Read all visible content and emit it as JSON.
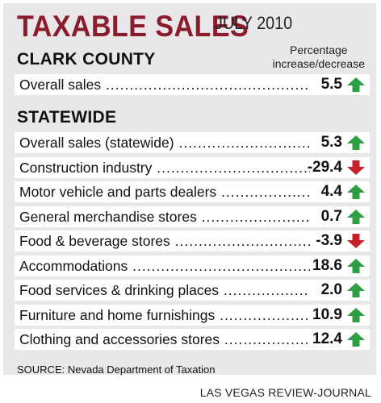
{
  "header": {
    "title": "TAXABLE SALES",
    "subtitle": "JULY 2010",
    "column_label_line1": "Percentage",
    "column_label_line2": "increase/decrease"
  },
  "sections": {
    "clark": "CLARK COUNTY",
    "statewide": "STATEWIDE"
  },
  "colors": {
    "increase": "#2e9e44",
    "decrease": "#c8202a",
    "title": "#8a1c2b",
    "panel": "#e9e7ea"
  },
  "chart_data": {
    "type": "table",
    "title": "TAXABLE SALES",
    "subtitle": "JULY 2010",
    "value_label": "Percentage increase/decrease",
    "groups": [
      {
        "name": "CLARK COUNTY",
        "rows": [
          {
            "label": "Overall sales",
            "value": 5.5,
            "display": "5.5",
            "direction": "up"
          }
        ]
      },
      {
        "name": "STATEWIDE",
        "rows": [
          {
            "label": "Overall sales (statewide)",
            "value": 5.3,
            "display": "5.3",
            "direction": "up"
          },
          {
            "label": "Construction industry",
            "value": -29.4,
            "display": "-29.4",
            "direction": "down"
          },
          {
            "label": "Motor vehicle and parts dealers",
            "value": 4.4,
            "display": "4.4",
            "direction": "up"
          },
          {
            "label": "General merchandise stores",
            "value": 0.7,
            "display": "0.7",
            "direction": "up"
          },
          {
            "label": "Food & beverage stores",
            "value": -3.9,
            "display": "-3.9",
            "direction": "down"
          },
          {
            "label": "Accommodations",
            "value": 18.6,
            "display": "18.6",
            "direction": "up"
          },
          {
            "label": "Food services & drinking places",
            "value": 2.0,
            "display": "2.0",
            "direction": "up"
          },
          {
            "label": "Furniture and home furnishings",
            "value": 10.9,
            "display": "10.9",
            "direction": "up"
          },
          {
            "label": "Clothing and accessories stores",
            "value": 12.4,
            "display": "12.4",
            "direction": "up"
          }
        ]
      }
    ]
  },
  "footer": {
    "source": "SOURCE: Nevada Department of Taxation",
    "credit": "LAS VEGAS REVIEW-JOURNAL"
  }
}
